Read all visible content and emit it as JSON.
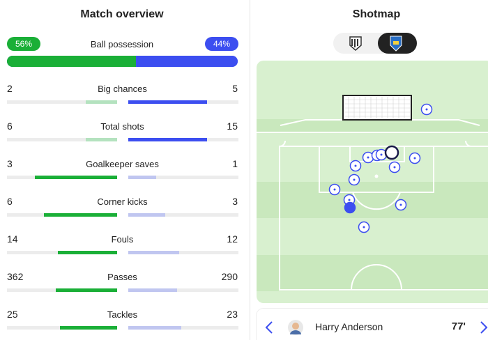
{
  "left_panel": {
    "title": "Match overview",
    "possession": {
      "label": "Ball possession",
      "home": 56,
      "away": 44,
      "home_label": "56%",
      "away_label": "44%"
    },
    "stats": [
      {
        "label": "Big chances",
        "home": 2,
        "away": 5
      },
      {
        "label": "Total shots",
        "home": 6,
        "away": 15
      },
      {
        "label": "Goalkeeper saves",
        "home": 3,
        "away": 1
      },
      {
        "label": "Corner kicks",
        "home": 6,
        "away": 3
      },
      {
        "label": "Fouls",
        "home": 14,
        "away": 12
      },
      {
        "label": "Passes",
        "home": 362,
        "away": 290
      },
      {
        "label": "Tackles",
        "home": 25,
        "away": 23
      }
    ]
  },
  "right_panel": {
    "title": "Shotmap",
    "player": {
      "name": "Harry Anderson",
      "minute": "77'"
    }
  }
}
